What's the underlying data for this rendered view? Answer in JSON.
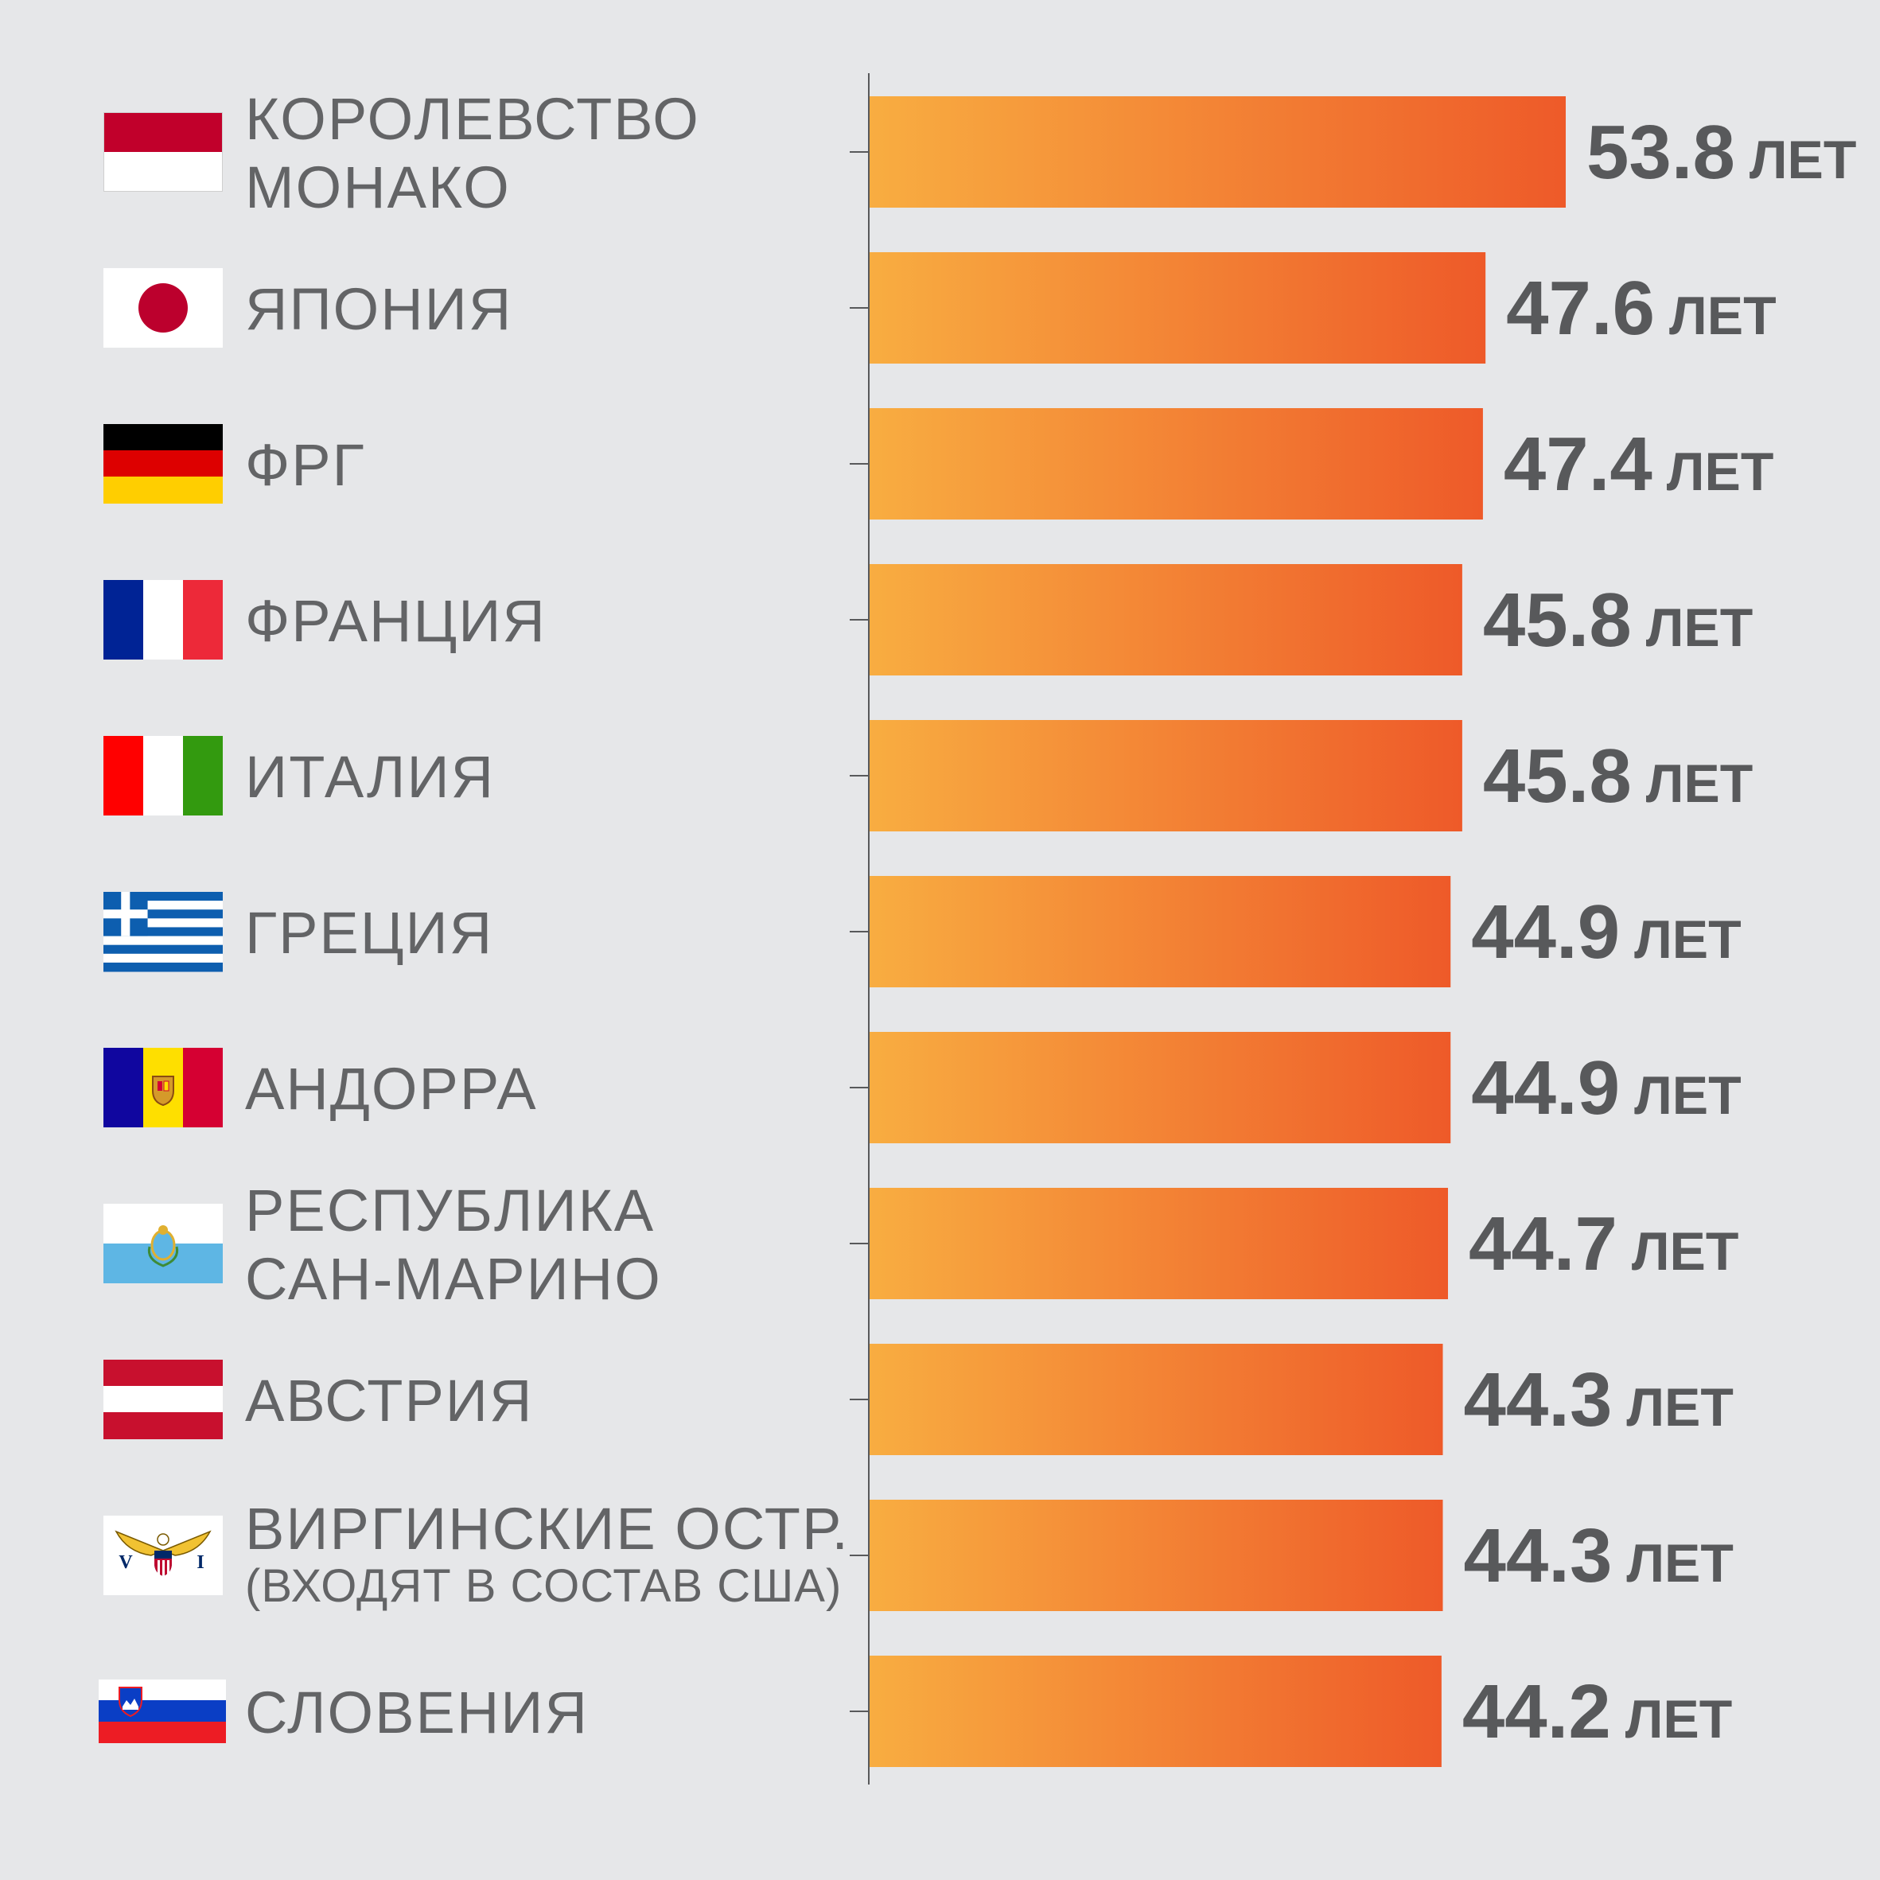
{
  "colors": {
    "background": "#e6e7e9",
    "bar_start": "#f8ad41",
    "bar_end": "#ee5a29",
    "axis": "#58595b",
    "text": "#636466"
  },
  "chart_data": {
    "type": "bar",
    "orientation": "horizontal",
    "title": "",
    "xlabel": "",
    "ylabel": "",
    "unit": "ЛЕТ",
    "xlim": [
      0,
      53.8
    ],
    "categories": [
      {
        "label": [
          "КОРОЛЕВСТВО",
          "МОНАКО"
        ],
        "flag": "monaco-flag-icon"
      },
      {
        "label": [
          "ЯПОНИЯ"
        ],
        "flag": "japan-flag-icon"
      },
      {
        "label": [
          "ФРГ"
        ],
        "flag": "germany-flag-icon"
      },
      {
        "label": [
          "ФРАНЦИЯ"
        ],
        "flag": "france-flag-icon"
      },
      {
        "label": [
          "ИТАЛИЯ"
        ],
        "flag": "italy-flag-icon"
      },
      {
        "label": [
          "ГРЕЦИЯ"
        ],
        "flag": "greece-flag-icon"
      },
      {
        "label": [
          "АНДОРРА"
        ],
        "flag": "andorra-flag-icon"
      },
      {
        "label": [
          "РЕСПУБЛИКА",
          "САН-МАРИНО"
        ],
        "flag": "san-marino-flag-icon"
      },
      {
        "label": [
          "АВСТРИЯ"
        ],
        "flag": "austria-flag-icon"
      },
      {
        "label": [
          "ВИРГИНСКИЕ ОСТР."
        ],
        "sublabel": "(ВХОДЯТ В СОСТАВ США)",
        "flag": "virgin-islands-flag-icon"
      },
      {
        "label": [
          "СЛОВЕНИЯ"
        ],
        "flag": "slovenia-flag-icon"
      }
    ],
    "values": [
      53.8,
      47.6,
      47.4,
      45.8,
      45.8,
      44.9,
      44.9,
      44.7,
      44.3,
      44.3,
      44.2
    ],
    "value_labels": [
      "53.8",
      "47.6",
      "47.4",
      "45.8",
      "45.8",
      "44.9",
      "44.9",
      "44.7",
      "44.3",
      "44.3",
      "44.2"
    ]
  }
}
